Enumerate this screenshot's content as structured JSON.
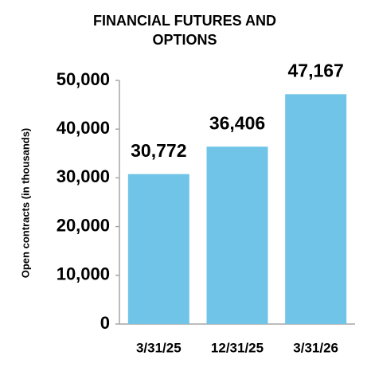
{
  "chart_data": {
    "type": "bar",
    "title": "FINANCIAL FUTURES AND OPTIONS",
    "y_label": "Open contracts (in thousands)",
    "categories": [
      "3/31/25",
      "12/31/25",
      "3/31/26"
    ],
    "values": [
      30772,
      36406,
      47167
    ],
    "value_labels": [
      "30,772",
      "36,406",
      "47,167"
    ],
    "color": "#70c4e8",
    "ylim": [
      0,
      50000
    ],
    "yticks": [
      0,
      {
        "value": 10000,
        "label": "10,000"
      },
      {
        "value": 20000,
        "label": "20,000"
      },
      {
        "value": 30000,
        "label": "30,000"
      },
      {
        "value": 40000,
        "label": "40,000"
      },
      {
        "value": 50000,
        "label": "50,000"
      }
    ],
    "grid": false
  }
}
